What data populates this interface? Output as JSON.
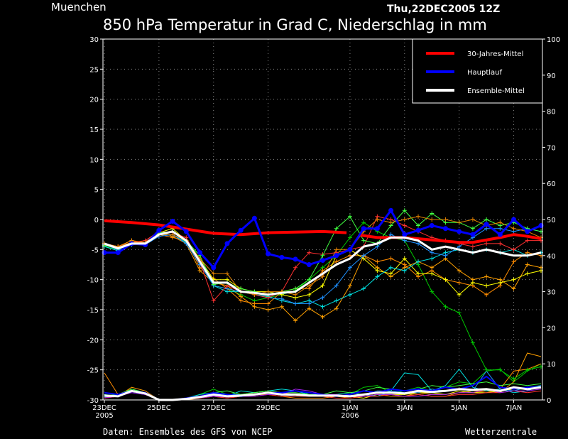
{
  "chart_data": {
    "type": "line",
    "location": "Muenchen",
    "run": "Thu,22DEC2005 12Z",
    "title": "850 hPa Temperatur in Grad C, Niederschlag in mm",
    "source": "Daten: Ensembles des GFS von NCEP",
    "brand": "Wetterzentrale",
    "y_left": {
      "min": -30,
      "max": 30,
      "ticks": [
        30,
        25,
        20,
        15,
        10,
        5,
        0,
        -5,
        -10,
        -15,
        -20,
        -25,
        -30
      ]
    },
    "y_right": {
      "min": 0,
      "max": 100,
      "ticks": [
        100,
        90,
        80,
        70,
        60,
        50,
        40,
        30,
        20,
        10,
        0
      ]
    },
    "x_range": [
      0,
      64
    ],
    "x_ticks": [
      {
        "t": 0,
        "l1": "23DEC",
        "l2": "2005"
      },
      {
        "t": 8,
        "l1": "25DEC",
        "l2": ""
      },
      {
        "t": 16,
        "l1": "27DEC",
        "l2": ""
      },
      {
        "t": 24,
        "l1": "29DEC",
        "l2": ""
      },
      {
        "t": 36,
        "l1": "1JAN",
        "l2": "2006"
      },
      {
        "t": 44,
        "l1": "3JAN",
        "l2": ""
      },
      {
        "t": 52,
        "l1": "5JAN",
        "l2": ""
      },
      {
        "t": 60,
        "l1": "7JAN",
        "l2": ""
      }
    ],
    "legend": [
      {
        "label": "30-Jahres-Mittel",
        "color": "#ff0000"
      },
      {
        "label": "Hauptlauf",
        "color": "#0000ff"
      },
      {
        "label": "Ensemble-Mittel",
        "color": "#ffffff"
      }
    ],
    "climate_mean": {
      "segments": [
        {
          "x": [
            0,
            4,
            8,
            12,
            16,
            20,
            24,
            28,
            32,
            35.5
          ],
          "y": [
            -0.2,
            -0.5,
            -0.9,
            -1.6,
            -2.3,
            -2.5,
            -2.2,
            -2.1,
            -2.0,
            -2.2
          ]
        },
        {
          "x": [
            37.5,
            40,
            44,
            48,
            52,
            54,
            58,
            60,
            62,
            64
          ],
          "y": [
            -2.6,
            -3.0,
            -3.0,
            -3.4,
            -3.8,
            -3.8,
            -3.0,
            -2.5,
            -2.8,
            -3.2
          ]
        }
      ]
    },
    "main_run": {
      "x": [
        0,
        2,
        4,
        6,
        8,
        10,
        12,
        14,
        16,
        18,
        20,
        22,
        24,
        26,
        28,
        30,
        32,
        34,
        36,
        38,
        40,
        42,
        44,
        46,
        48,
        50,
        52,
        54,
        56,
        58,
        60,
        62,
        64
      ],
      "y": [
        -5.5,
        -5.5,
        -4.0,
        -4.2,
        -1.8,
        -0.3,
        -2.0,
        -5.5,
        -8.0,
        -4.0,
        -1.8,
        0.2,
        -5.7,
        -6.3,
        -6.6,
        -7.5,
        -6.8,
        -6.0,
        -5.0,
        -1.5,
        -1.5,
        1.5,
        -2.5,
        -1.8,
        -1.0,
        -1.5,
        -2.0,
        -2.5,
        -0.8,
        -2.5,
        0.0,
        -2.0,
        -1.0
      ]
    },
    "ensemble_mean": {
      "x": [
        0,
        2,
        4,
        6,
        8,
        10,
        12,
        14,
        16,
        18,
        20,
        22,
        24,
        26,
        28,
        30,
        32,
        34,
        36,
        38,
        40,
        42,
        44,
        46,
        48,
        50,
        52,
        54,
        56,
        58,
        60,
        62,
        64
      ],
      "y": [
        -4.0,
        -4.8,
        -4.0,
        -4.0,
        -2.5,
        -2.0,
        -3.5,
        -7.0,
        -10.5,
        -10.5,
        -12.0,
        -12.2,
        -12.5,
        -12.2,
        -12.0,
        -10.5,
        -9.0,
        -7.5,
        -6.5,
        -4.5,
        -4.0,
        -3.0,
        -3.0,
        -3.5,
        -5.0,
        -4.5,
        -5.0,
        -5.5,
        -5.0,
        -5.5,
        -6.0,
        -6.0,
        -5.5
      ]
    },
    "ensemble_members": [
      {
        "color": "#00c800",
        "y": [
          -4.5,
          -5.0,
          -4.0,
          -3.8,
          -2.2,
          -2.0,
          -3.8,
          -6.0,
          -11.0,
          -11.5,
          -12.5,
          -13.5,
          -13.0,
          -12.5,
          -11.8,
          -10.0,
          -8.0,
          -6.0,
          -3.0,
          -0.5,
          -2.0,
          -3.0,
          -3.5,
          -7.5,
          -12.0,
          -14.5,
          -15.5,
          -20.5,
          -25.0,
          -25.0,
          -26.5,
          -25.0,
          -24.5
        ]
      },
      {
        "color": "#ffa000",
        "y": [
          -4.0,
          -4.5,
          -3.5,
          -3.8,
          -2.0,
          -2.8,
          -4.0,
          -8.5,
          -10.5,
          -11.0,
          -12.8,
          -14.5,
          -15.0,
          -14.5,
          -16.8,
          -14.8,
          -16.2,
          -14.8,
          -11.0,
          -6.0,
          -8.0,
          -9.5,
          -8.0,
          -7.0,
          -8.0,
          -6.5,
          -8.5,
          -10.0,
          -9.5,
          -10.0,
          -11.5,
          -7.5,
          -8.0
        ]
      },
      {
        "color": "#ff8c00",
        "y": [
          -4.0,
          -4.5,
          -3.5,
          -4.0,
          -2.5,
          -3.0,
          -3.5,
          -8.0,
          -9.8,
          -11.5,
          -13.5,
          -14.0,
          -14.0,
          -12.0,
          -11.5,
          -11.5,
          -8.5,
          -7.0,
          -6.0,
          -6.0,
          -7.0,
          -6.5,
          -7.5,
          -9.5,
          -8.5,
          -10.0,
          -10.5,
          -11.0,
          -12.5,
          -11.0,
          -7.0,
          -5.5,
          -6.0
        ]
      },
      {
        "color": "#ffff00",
        "y": [
          -4.0,
          -4.8,
          -4.0,
          -3.8,
          -2.2,
          -1.5,
          -3.5,
          -6.5,
          -10.0,
          -10.0,
          -11.5,
          -12.0,
          -12.0,
          -12.5,
          -13.0,
          -12.5,
          -11.0,
          -6.0,
          -5.0,
          -6.5,
          -8.5,
          -9.0,
          -6.5,
          -9.0,
          -9.0,
          -10.0,
          -12.5,
          -10.5,
          -11.0,
          -10.5,
          -10.0,
          -9.0,
          -8.5
        ]
      },
      {
        "color": "#00e0e0",
        "y": [
          -4.5,
          -5.2,
          -4.2,
          -4.0,
          -2.5,
          -2.5,
          -3.8,
          -7.0,
          -11.0,
          -12.0,
          -12.0,
          -12.5,
          -12.8,
          -13.5,
          -14.0,
          -13.5,
          -14.5,
          -13.5,
          -12.5,
          -11.5,
          -9.5,
          -8.0,
          -8.5,
          -7.0,
          -6.5,
          -5.5,
          -5.0,
          -5.5,
          -5.0,
          -5.5,
          -5.0,
          -6.0,
          -5.5
        ]
      },
      {
        "color": "#1e90ff",
        "y": [
          -4.2,
          -5.0,
          -4.0,
          -4.2,
          -2.8,
          -2.5,
          -4.0,
          -7.5,
          -11.0,
          -11.5,
          -12.0,
          -12.5,
          -13.0,
          -13.2,
          -14.0,
          -14.0,
          -13.0,
          -11.0,
          -8.0,
          -6.0,
          -4.5,
          -2.5,
          -3.5,
          -4.0,
          -5.5,
          -6.0,
          -4.5,
          -3.0,
          -1.5,
          -1.5,
          -2.0,
          -1.5,
          -2.0
        ]
      },
      {
        "color": "#ff3030",
        "y": [
          -4.0,
          -4.5,
          -3.8,
          -3.5,
          -2.0,
          -2.2,
          -3.0,
          -7.0,
          -13.5,
          -11.0,
          -12.0,
          -12.5,
          -13.0,
          -12.0,
          -8.0,
          -5.5,
          -5.8,
          -5.5,
          -5.0,
          -4.5,
          0.5,
          0.0,
          -1.0,
          -2.0,
          -3.0,
          -3.5,
          -4.0,
          -4.5,
          -4.0,
          -4.0,
          -5.0,
          -3.5,
          -3.5
        ]
      },
      {
        "color": "#40ff40",
        "y": [
          -4.3,
          -4.8,
          -3.8,
          -4.0,
          -2.2,
          -2.0,
          -3.5,
          -6.0,
          -10.8,
          -10.5,
          -11.5,
          -12.0,
          -12.5,
          -12.0,
          -11.5,
          -10.0,
          -6.0,
          -1.5,
          0.5,
          -3.5,
          -4.0,
          -1.0,
          1.5,
          -1.0,
          1.0,
          -0.5,
          -0.5,
          -1.5,
          0.0,
          -1.0,
          -0.5,
          -1.5,
          -2.0
        ]
      },
      {
        "color": "#e08000",
        "y": [
          -4.0,
          -4.5,
          -3.8,
          -3.8,
          -2.5,
          -2.5,
          -3.5,
          -6.5,
          -9.0,
          -9.0,
          -12.0,
          -12.5,
          -12.0,
          -12.0,
          -12.5,
          -11.0,
          -9.5,
          -5.0,
          -5.0,
          -2.0,
          0.0,
          -0.5,
          0.0,
          0.5,
          0.0,
          0.0,
          -0.5,
          0.0,
          -1.0,
          -0.5,
          -1.5,
          -2.0,
          -3.0
        ]
      }
    ],
    "precip_members": [
      {
        "color": "#00c800",
        "y": [
          1.0,
          1.2,
          2.5,
          1.5,
          0.0,
          0.0,
          0.5,
          1.5,
          3.0,
          1.5,
          1.0,
          1.5,
          2.0,
          1.5,
          1.0,
          2.0,
          1.5,
          1.0,
          1.5,
          3.5,
          4.0,
          2.0,
          2.5,
          3.5,
          2.5,
          3.5,
          5.0,
          4.5,
          8.0,
          8.5,
          5.0,
          8.0,
          10.0
        ]
      },
      {
        "color": "#ffa000",
        "y": [
          0.5,
          1.0,
          3.5,
          2.5,
          0.0,
          0.0,
          0.2,
          0.8,
          1.5,
          0.8,
          1.5,
          2.0,
          2.5,
          2.0,
          1.5,
          1.0,
          1.0,
          1.5,
          1.0,
          1.0,
          1.5,
          1.5,
          1.0,
          2.0,
          1.5,
          1.5,
          2.0,
          2.5,
          2.5,
          2.0,
          5.0,
          13.0,
          12.0
        ]
      },
      {
        "color": "#ff8c00",
        "y": [
          7.5,
          1.5,
          3.0,
          2.0,
          0.0,
          0.0,
          0.0,
          0.5,
          1.0,
          0.5,
          1.0,
          1.5,
          1.5,
          1.0,
          0.5,
          0.5,
          0.5,
          1.0,
          0.5,
          1.0,
          1.5,
          1.0,
          1.0,
          1.5,
          1.0,
          1.0,
          2.0,
          2.0,
          2.5,
          3.0,
          8.0,
          8.5,
          10.0
        ]
      },
      {
        "color": "#ffff00",
        "y": [
          0.8,
          1.0,
          2.5,
          1.5,
          0.0,
          0.0,
          0.3,
          1.0,
          1.5,
          1.0,
          1.0,
          1.5,
          2.0,
          1.5,
          1.5,
          1.5,
          1.0,
          1.0,
          1.0,
          0.5,
          1.5,
          1.5,
          1.5,
          2.0,
          2.0,
          1.5,
          2.5,
          2.0,
          2.0,
          2.5,
          3.0,
          3.0,
          3.5
        ]
      },
      {
        "color": "#00e0e0",
        "y": [
          1.5,
          1.0,
          3.0,
          2.0,
          0.0,
          0.0,
          0.5,
          1.5,
          2.0,
          1.0,
          2.5,
          2.0,
          2.5,
          3.0,
          2.5,
          1.5,
          1.0,
          1.5,
          2.0,
          1.5,
          1.0,
          2.5,
          7.5,
          7.0,
          2.5,
          4.0,
          8.5,
          3.5,
          2.5,
          3.0,
          2.0,
          2.5,
          4.0
        ]
      },
      {
        "color": "#1e90ff",
        "y": [
          0.8,
          1.5,
          2.0,
          1.5,
          0.0,
          0.0,
          0.3,
          1.0,
          1.0,
          1.5,
          1.5,
          1.5,
          2.0,
          1.5,
          1.0,
          1.0,
          1.5,
          1.5,
          1.0,
          1.5,
          2.5,
          2.5,
          2.0,
          2.0,
          3.0,
          2.5,
          3.0,
          2.5,
          8.0,
          3.0,
          2.5,
          3.5,
          4.0
        ]
      },
      {
        "color": "#ff3030",
        "y": [
          0.5,
          1.0,
          2.5,
          1.5,
          0.0,
          0.0,
          0.2,
          0.5,
          1.0,
          0.5,
          1.0,
          1.0,
          1.5,
          1.0,
          1.0,
          1.0,
          1.0,
          0.5,
          0.5,
          1.0,
          1.0,
          1.5,
          1.0,
          1.5,
          1.0,
          1.0,
          1.5,
          1.5,
          2.0,
          2.0,
          2.5,
          2.0,
          2.5
        ]
      },
      {
        "color": "#40ff40",
        "y": [
          1.2,
          1.5,
          3.0,
          2.0,
          0.0,
          0.0,
          0.5,
          1.0,
          2.0,
          2.5,
          1.5,
          2.0,
          2.5,
          2.0,
          2.0,
          1.5,
          1.5,
          2.5,
          2.0,
          2.5,
          3.5,
          3.0,
          2.5,
          3.0,
          4.0,
          3.5,
          4.0,
          4.5,
          5.0,
          4.0,
          4.5,
          4.0,
          4.5
        ]
      },
      {
        "color": "#a020f0",
        "y": [
          0.6,
          1.0,
          2.0,
          1.5,
          0.0,
          0.0,
          0.2,
          0.6,
          1.0,
          0.8,
          1.0,
          1.0,
          1.5,
          1.5,
          3.0,
          2.5,
          1.5,
          1.5,
          1.0,
          1.0,
          1.5,
          1.5,
          1.0,
          1.0,
          1.5,
          1.5,
          2.0,
          2.0,
          3.0,
          2.0,
          2.5,
          2.5,
          3.0
        ]
      }
    ],
    "precip_main": [
      2.0,
      1.5,
      2.5,
      2.0,
      0.0,
      0.0,
      0.5,
      1.0,
      2.0,
      1.5,
      1.0,
      1.5,
      2.0,
      2.0,
      2.5,
      2.0,
      1.5,
      1.0,
      1.5,
      2.5,
      2.0,
      3.0,
      2.5,
      3.0,
      2.5,
      3.5,
      3.0,
      4.0,
      6.5,
      3.5,
      3.0,
      3.5,
      3.5
    ],
    "precip_mean": [
      1.2,
      1.0,
      2.5,
      1.8,
      0.0,
      0.0,
      0.3,
      0.8,
      1.5,
      1.0,
      1.2,
      1.5,
      2.0,
      1.5,
      1.5,
      1.2,
      1.2,
      1.2,
      1.0,
      1.5,
      2.0,
      2.0,
      1.8,
      2.5,
      2.2,
      2.5,
      3.0,
      2.8,
      3.0,
      2.5,
      3.5,
      3.0,
      3.5
    ]
  }
}
